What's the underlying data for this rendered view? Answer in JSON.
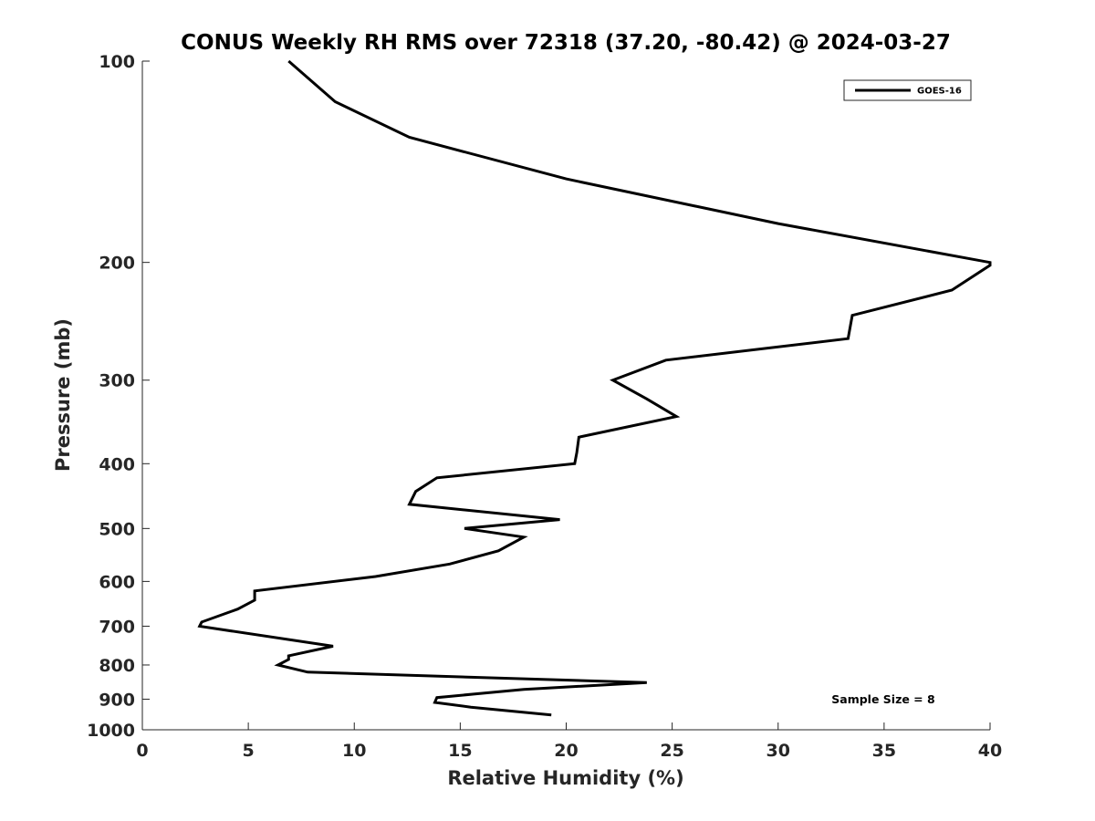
{
  "chart_data": {
    "type": "line",
    "title": "CONUS Weekly RH RMS over 72318 (37.20, -80.42) @ 2024-03-27",
    "xlabel": "Relative Humidity (%)",
    "ylabel": "Pressure (mb)",
    "xlim": [
      0,
      40
    ],
    "ylim": [
      100,
      1000
    ],
    "y_scale": "log",
    "y_reversed": true,
    "x_ticks": [
      0,
      5,
      10,
      15,
      20,
      25,
      30,
      35,
      40
    ],
    "y_ticks": [
      100,
      200,
      300,
      400,
      500,
      600,
      700,
      800,
      900,
      1000
    ],
    "grid": false,
    "legend_position": "top-right",
    "annotation": "Sample Size = 8",
    "series": [
      {
        "name": "GOES-16",
        "color": "#000000",
        "points": [
          [
            6.9,
            100
          ],
          [
            9.1,
            115
          ],
          [
            12.6,
            130
          ],
          [
            20.0,
            150
          ],
          [
            30.0,
            175
          ],
          [
            40.0,
            200
          ],
          [
            40.0,
            202
          ],
          [
            38.2,
            220
          ],
          [
            33.5,
            240
          ],
          [
            33.3,
            260
          ],
          [
            24.7,
            280
          ],
          [
            22.2,
            300
          ],
          [
            23.8,
            320
          ],
          [
            25.2,
            340
          ],
          [
            20.6,
            365
          ],
          [
            20.5,
            385
          ],
          [
            20.4,
            400
          ],
          [
            13.9,
            420
          ],
          [
            12.9,
            440
          ],
          [
            12.6,
            460
          ],
          [
            19.7,
            485
          ],
          [
            15.2,
            500
          ],
          [
            18.0,
            515
          ],
          [
            16.8,
            540
          ],
          [
            14.5,
            565
          ],
          [
            11.0,
            590
          ],
          [
            5.3,
            620
          ],
          [
            5.3,
            640
          ],
          [
            4.5,
            660
          ],
          [
            2.8,
            690
          ],
          [
            2.7,
            700
          ],
          [
            9.0,
            750
          ],
          [
            6.9,
            775
          ],
          [
            6.9,
            785
          ],
          [
            6.4,
            800
          ],
          [
            7.8,
            820
          ],
          [
            23.8,
            850
          ],
          [
            18.0,
            870
          ],
          [
            13.9,
            895
          ],
          [
            13.8,
            910
          ],
          [
            15.5,
            925
          ],
          [
            19.3,
            950
          ]
        ]
      }
    ]
  }
}
